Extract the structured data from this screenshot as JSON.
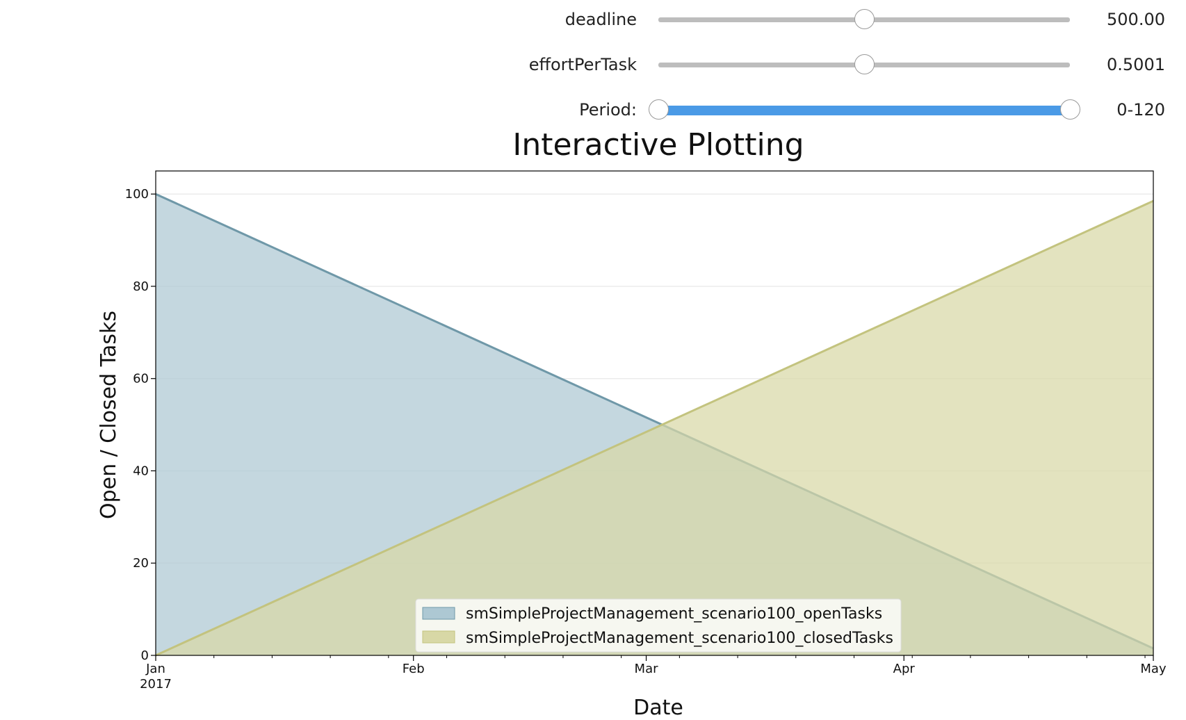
{
  "widgets": {
    "deadline": {
      "label": "deadline",
      "value": 0.5,
      "readout": "500.00"
    },
    "effort": {
      "label": "effortPerTask",
      "value": 0.5,
      "readout": "0.5001"
    },
    "period": {
      "label": "Period:",
      "low": 0,
      "high": 1,
      "readout": "0-120"
    }
  },
  "colors": {
    "open_fill": "#adc8d3",
    "open_line": "#6f98a8",
    "closed_fill": "#d8d8a6",
    "closed_line": "#c3c37e",
    "range_accent": "#4a9ae6"
  },
  "chart_data": {
    "type": "area",
    "title": "Interactive Plotting",
    "xlabel": "Date",
    "ylabel": "Open / Closed Tasks",
    "x": [
      "2017-01-01",
      "2017-05-01"
    ],
    "xlim": [
      "2017-01-01",
      "2017-05-01"
    ],
    "ylim": [
      0,
      105
    ],
    "x_ticks": [
      {
        "date": "2017-01-01",
        "label": "Jan",
        "sublabel": "2017"
      },
      {
        "date": "2017-02-01",
        "label": "Feb",
        "sublabel": ""
      },
      {
        "date": "2017-03-01",
        "label": "Mar",
        "sublabel": ""
      },
      {
        "date": "2017-04-01",
        "label": "Apr",
        "sublabel": ""
      },
      {
        "date": "2017-05-01",
        "label": "May",
        "sublabel": ""
      }
    ],
    "y_ticks": [
      0,
      20,
      40,
      60,
      80,
      100
    ],
    "grid": "horizontal",
    "legend_position": "bottom-center",
    "stacked": false,
    "series": [
      {
        "name": "smSimpleProjectManagement_scenario100_openTasks",
        "values": [
          100,
          1.5
        ]
      },
      {
        "name": "smSimpleProjectManagement_scenario100_closedTasks",
        "values": [
          0,
          98.5
        ]
      }
    ]
  }
}
